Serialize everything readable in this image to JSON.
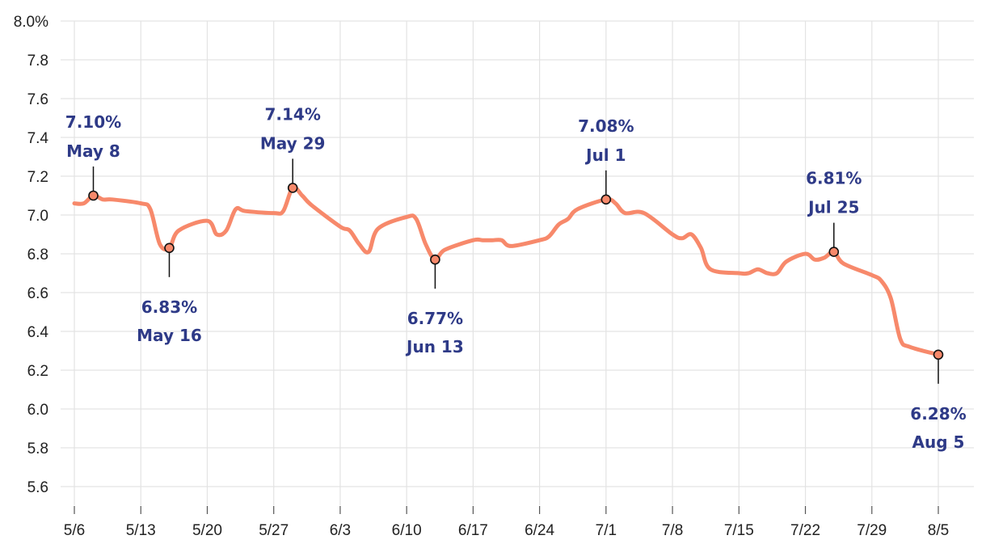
{
  "chart_data": {
    "type": "line",
    "title": "",
    "xlabel": "",
    "ylabel": "",
    "x_range": [
      "2024-05-06",
      "2024-08-05"
    ],
    "ylim": [
      5.6,
      8.0
    ],
    "y_ticks": [
      5.6,
      5.8,
      6.0,
      6.2,
      6.4,
      6.6,
      6.8,
      7.0,
      7.2,
      7.4,
      7.6,
      7.8,
      8.0
    ],
    "y_tick_labels": [
      "5.6",
      "5.8",
      "6.0",
      "6.2",
      "6.4",
      "6.6",
      "6.8",
      "7.0",
      "7.2",
      "7.4",
      "7.6",
      "7.8",
      "8.0%"
    ],
    "x_ticks": [
      {
        "date": "2024-05-06",
        "label": "5/6"
      },
      {
        "date": "2024-05-13",
        "label": "5/13"
      },
      {
        "date": "2024-05-20",
        "label": "5/20"
      },
      {
        "date": "2024-05-27",
        "label": "5/27"
      },
      {
        "date": "2024-06-03",
        "label": "6/3"
      },
      {
        "date": "2024-06-10",
        "label": "6/10"
      },
      {
        "date": "2024-06-17",
        "label": "6/17"
      },
      {
        "date": "2024-06-24",
        "label": "6/24"
      },
      {
        "date": "2024-07-01",
        "label": "7/1"
      },
      {
        "date": "2024-07-08",
        "label": "7/8"
      },
      {
        "date": "2024-07-15",
        "label": "7/15"
      },
      {
        "date": "2024-07-22",
        "label": "7/22"
      },
      {
        "date": "2024-07-29",
        "label": "7/29"
      },
      {
        "date": "2024-08-05",
        "label": "8/5"
      }
    ],
    "grid": true,
    "colors": {
      "line": "#f7896b",
      "annotation_text": "#2e3a87",
      "grid": "#e3e3e3",
      "marker_stroke": "#111111"
    },
    "series": [
      {
        "points": [
          [
            "2024-05-06",
            7.06
          ],
          [
            "2024-05-07",
            7.06
          ],
          [
            "2024-05-08",
            7.1
          ],
          [
            "2024-05-09",
            7.08
          ],
          [
            "2024-05-10",
            7.08
          ],
          [
            "2024-05-13",
            7.06
          ],
          [
            "2024-05-14",
            7.03
          ],
          [
            "2024-05-15",
            6.85
          ],
          [
            "2024-05-16",
            6.83
          ],
          [
            "2024-05-17",
            6.92
          ],
          [
            "2024-05-20",
            6.97
          ],
          [
            "2024-05-21",
            6.9
          ],
          [
            "2024-05-22",
            6.92
          ],
          [
            "2024-05-23",
            7.03
          ],
          [
            "2024-05-24",
            7.02
          ],
          [
            "2024-05-27",
            7.01
          ],
          [
            "2024-05-28",
            7.02
          ],
          [
            "2024-05-29",
            7.14
          ],
          [
            "2024-05-30",
            7.1
          ],
          [
            "2024-05-31",
            7.05
          ],
          [
            "2024-06-03",
            6.94
          ],
          [
            "2024-06-04",
            6.92
          ],
          [
            "2024-06-05",
            6.85
          ],
          [
            "2024-06-06",
            6.81
          ],
          [
            "2024-06-07",
            6.93
          ],
          [
            "2024-06-10",
            6.99
          ],
          [
            "2024-06-11",
            6.98
          ],
          [
            "2024-06-12",
            6.85
          ],
          [
            "2024-06-13",
            6.77
          ],
          [
            "2024-06-14",
            6.82
          ],
          [
            "2024-06-17",
            6.87
          ],
          [
            "2024-06-18",
            6.87
          ],
          [
            "2024-06-19",
            6.87
          ],
          [
            "2024-06-20",
            6.87
          ],
          [
            "2024-06-21",
            6.84
          ],
          [
            "2024-06-24",
            6.87
          ],
          [
            "2024-06-25",
            6.89
          ],
          [
            "2024-06-26",
            6.95
          ],
          [
            "2024-06-27",
            6.98
          ],
          [
            "2024-06-28",
            7.03
          ],
          [
            "2024-07-01",
            7.08
          ],
          [
            "2024-07-02",
            7.06
          ],
          [
            "2024-07-03",
            7.01
          ],
          [
            "2024-07-05",
            7.01
          ],
          [
            "2024-07-08",
            6.9
          ],
          [
            "2024-07-09",
            6.88
          ],
          [
            "2024-07-10",
            6.9
          ],
          [
            "2024-07-11",
            6.83
          ],
          [
            "2024-07-12",
            6.72
          ],
          [
            "2024-07-15",
            6.7
          ],
          [
            "2024-07-16",
            6.7
          ],
          [
            "2024-07-17",
            6.72
          ],
          [
            "2024-07-18",
            6.7
          ],
          [
            "2024-07-19",
            6.7
          ],
          [
            "2024-07-20",
            6.76
          ],
          [
            "2024-07-22",
            6.8
          ],
          [
            "2024-07-23",
            6.77
          ],
          [
            "2024-07-24",
            6.78
          ],
          [
            "2024-07-25",
            6.81
          ],
          [
            "2024-07-26",
            6.75
          ],
          [
            "2024-07-29",
            6.69
          ],
          [
            "2024-07-30",
            6.66
          ],
          [
            "2024-07-31",
            6.57
          ],
          [
            "2024-08-01",
            6.36
          ],
          [
            "2024-08-02",
            6.32
          ],
          [
            "2024-08-05",
            6.28
          ]
        ]
      }
    ],
    "annotations": [
      {
        "date": "2024-05-08",
        "value": 7.1,
        "value_label": "7.10%",
        "date_label": "May 8",
        "position": "above"
      },
      {
        "date": "2024-05-16",
        "value": 6.83,
        "value_label": "6.83%",
        "date_label": "May 16",
        "position": "below"
      },
      {
        "date": "2024-05-29",
        "value": 7.14,
        "value_label": "7.14%",
        "date_label": "May 29",
        "position": "above"
      },
      {
        "date": "2024-06-13",
        "value": 6.77,
        "value_label": "6.77%",
        "date_label": "Jun 13",
        "position": "below"
      },
      {
        "date": "2024-07-01",
        "value": 7.08,
        "value_label": "7.08%",
        "date_label": "Jul 1",
        "position": "above"
      },
      {
        "date": "2024-07-25",
        "value": 6.81,
        "value_label": "6.81%",
        "date_label": "Jul 25",
        "position": "above"
      },
      {
        "date": "2024-08-05",
        "value": 6.28,
        "value_label": "6.28%",
        "date_label": "Aug 5",
        "position": "below"
      }
    ]
  }
}
